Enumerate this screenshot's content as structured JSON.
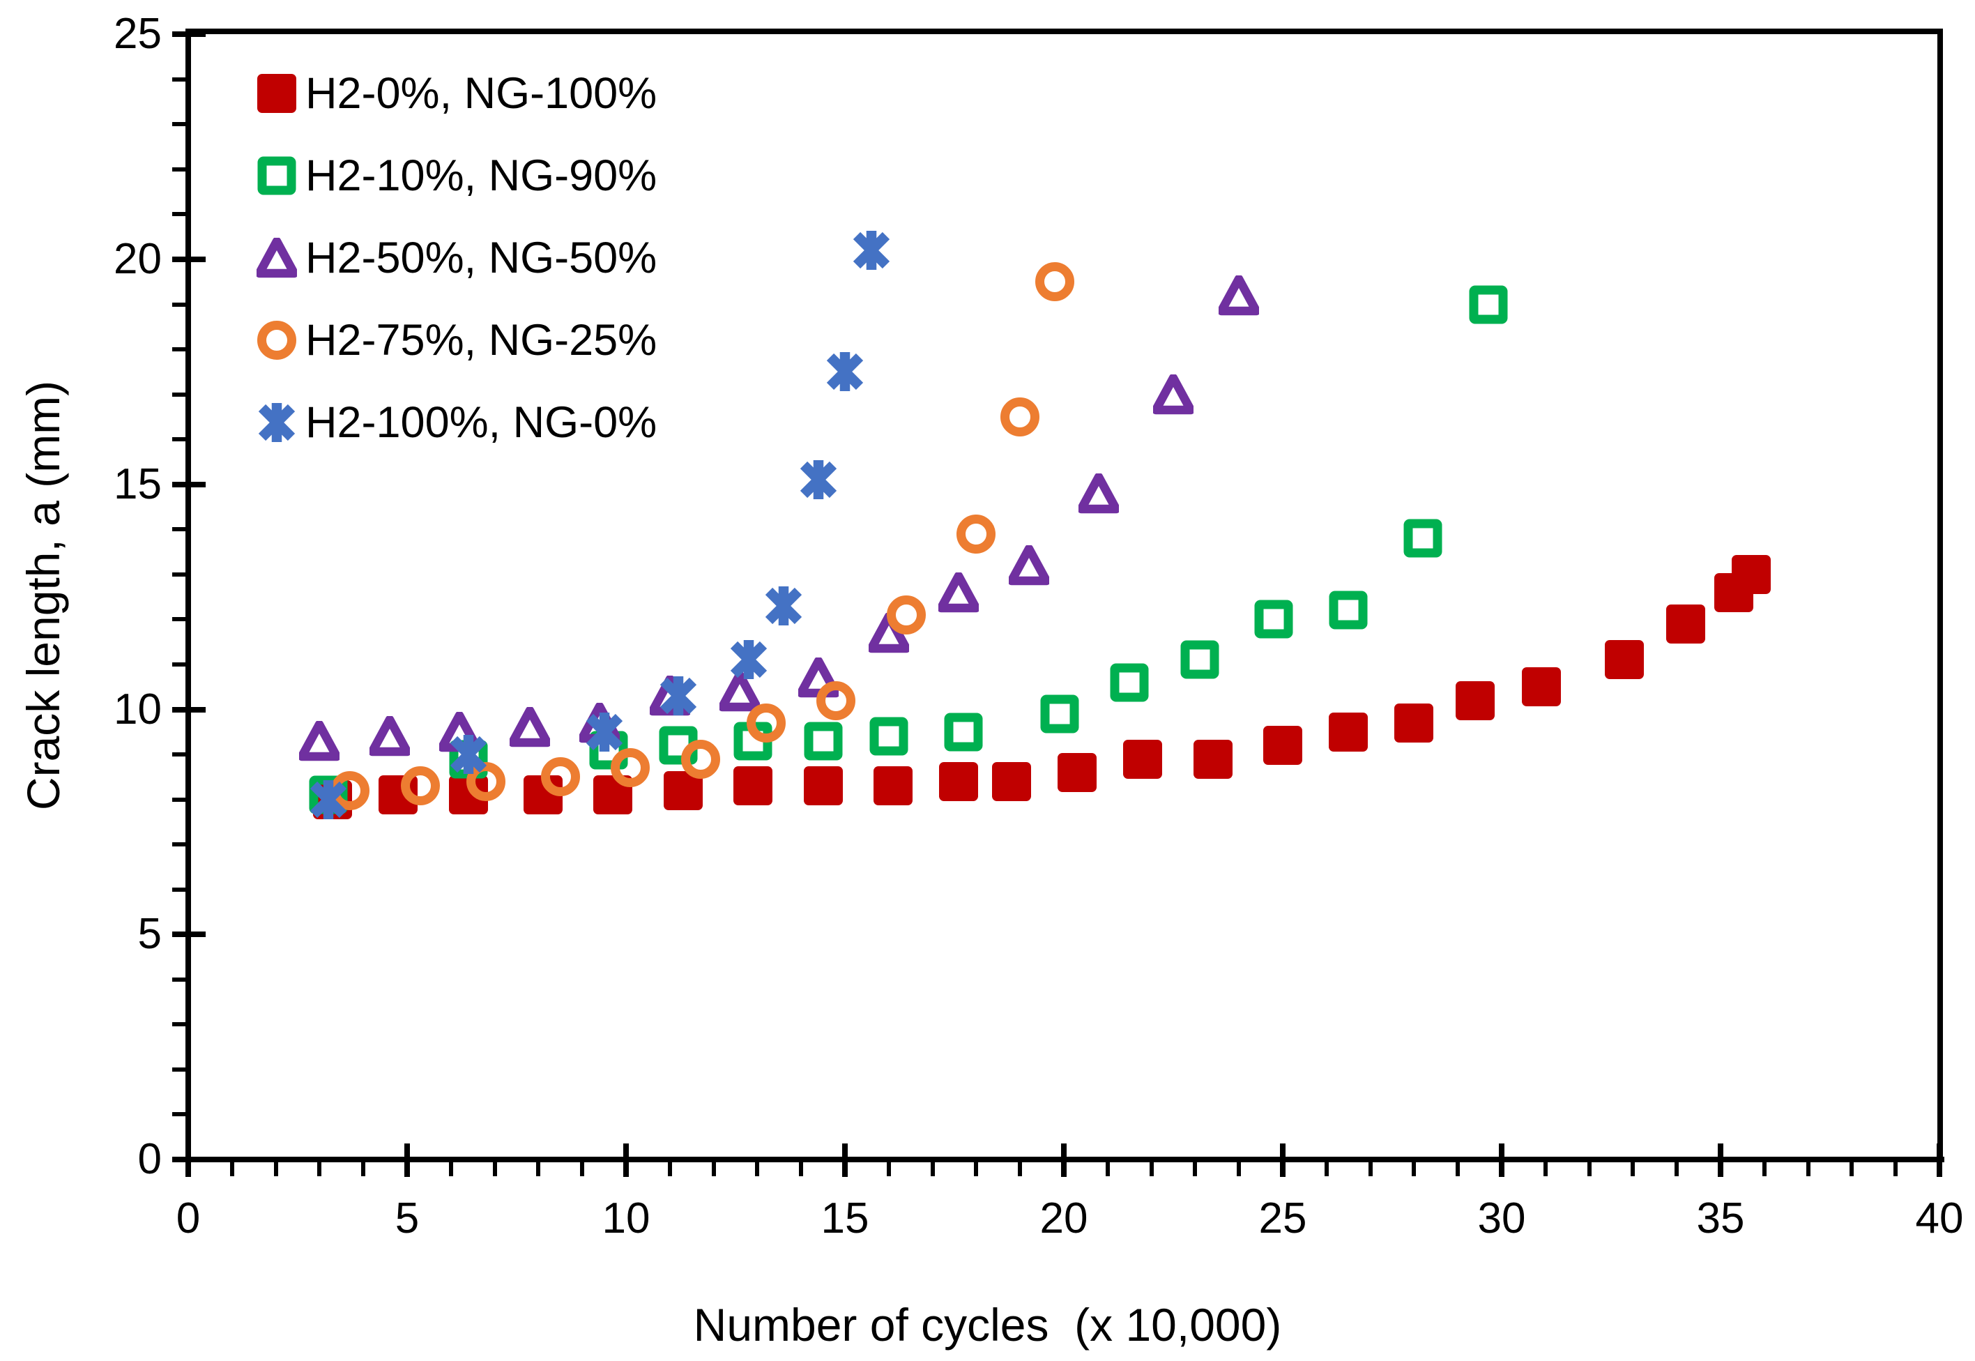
{
  "chart_data": {
    "type": "scatter",
    "title": "",
    "xlabel": "Number of cycles  (x 10,000)",
    "ylabel": "Crack length, a (mm)",
    "xlim": [
      0,
      40
    ],
    "ylim": [
      0,
      25
    ],
    "x_major_ticks": [
      0,
      5,
      10,
      15,
      20,
      25,
      30,
      35,
      40
    ],
    "y_major_ticks": [
      0,
      5,
      10,
      15,
      20,
      25
    ],
    "minor_tick_step": 1,
    "grid": false,
    "legend_position": "top-left-inside",
    "axis_color": "#000000",
    "series": [
      {
        "name": "H2-0%, NG-100%",
        "marker": "filled-square",
        "color": "#C00000",
        "points": [
          [
            3.3,
            8.0
          ],
          [
            4.8,
            8.1
          ],
          [
            6.4,
            8.1
          ],
          [
            8.1,
            8.1
          ],
          [
            9.7,
            8.1
          ],
          [
            11.3,
            8.2
          ],
          [
            12.9,
            8.3
          ],
          [
            14.5,
            8.3
          ],
          [
            16.1,
            8.3
          ],
          [
            17.6,
            8.4
          ],
          [
            18.8,
            8.4
          ],
          [
            20.3,
            8.6
          ],
          [
            21.8,
            8.9
          ],
          [
            23.4,
            8.9
          ],
          [
            25.0,
            9.2
          ],
          [
            26.5,
            9.5
          ],
          [
            28.0,
            9.7
          ],
          [
            29.4,
            10.2
          ],
          [
            30.9,
            10.5
          ],
          [
            32.8,
            11.1
          ],
          [
            34.2,
            11.9
          ],
          [
            35.3,
            12.6
          ],
          [
            35.7,
            13.0
          ]
        ]
      },
      {
        "name": "H2-10%, NG-90%",
        "marker": "open-square",
        "color": "#00B050",
        "points": [
          [
            3.2,
            8.1
          ],
          [
            6.4,
            8.9
          ],
          [
            9.6,
            9.1
          ],
          [
            11.2,
            9.2
          ],
          [
            12.9,
            9.3
          ],
          [
            14.5,
            9.3
          ],
          [
            16.0,
            9.4
          ],
          [
            17.7,
            9.5
          ],
          [
            19.9,
            9.9
          ],
          [
            21.5,
            10.6
          ],
          [
            23.1,
            11.1
          ],
          [
            24.8,
            12.0
          ],
          [
            26.5,
            12.2
          ],
          [
            28.2,
            13.8
          ],
          [
            29.7,
            19.0
          ]
        ]
      },
      {
        "name": "H2-50%, NG-50%",
        "marker": "open-triangle",
        "color": "#7030A0",
        "points": [
          [
            3.0,
            9.3
          ],
          [
            4.6,
            9.4
          ],
          [
            6.2,
            9.5
          ],
          [
            7.8,
            9.6
          ],
          [
            9.4,
            9.7
          ],
          [
            11.0,
            10.3
          ],
          [
            12.6,
            10.4
          ],
          [
            14.4,
            10.7
          ],
          [
            16.0,
            11.7
          ],
          [
            17.6,
            12.6
          ],
          [
            19.2,
            13.2
          ],
          [
            20.8,
            14.8
          ],
          [
            22.5,
            17.0
          ],
          [
            24.0,
            19.2
          ]
        ]
      },
      {
        "name": "H2-75%, NG-25%",
        "marker": "open-circle",
        "color": "#ED7D31",
        "points": [
          [
            3.7,
            8.2
          ],
          [
            5.3,
            8.3
          ],
          [
            6.8,
            8.4
          ],
          [
            8.5,
            8.5
          ],
          [
            10.1,
            8.7
          ],
          [
            11.7,
            8.9
          ],
          [
            13.2,
            9.7
          ],
          [
            14.8,
            10.2
          ],
          [
            16.4,
            12.1
          ],
          [
            18.0,
            13.9
          ],
          [
            19.0,
            16.5
          ],
          [
            19.8,
            19.5
          ]
        ]
      },
      {
        "name": "H2-100%, NG-0%",
        "marker": "asterisk",
        "color": "#4472C4",
        "points": [
          [
            3.2,
            8.0
          ],
          [
            6.4,
            9.0
          ],
          [
            9.5,
            9.5
          ],
          [
            11.2,
            10.3
          ],
          [
            12.8,
            11.1
          ],
          [
            13.6,
            12.3
          ],
          [
            14.4,
            15.1
          ],
          [
            15.0,
            17.5
          ],
          [
            15.6,
            20.2
          ]
        ]
      }
    ]
  }
}
